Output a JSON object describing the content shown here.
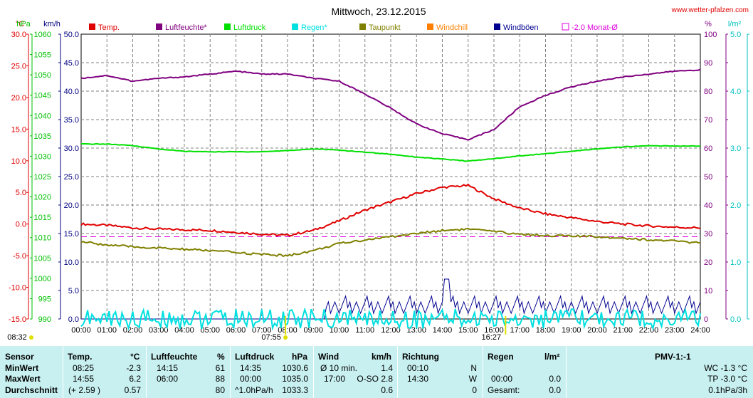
{
  "chart_data": {
    "type": "line",
    "title": "Mittwoch, 23.12.2015",
    "watermark": "www.wetter-pfalzen.com",
    "axes": {
      "temp": {
        "unit": "°C",
        "min": -15,
        "max": 30,
        "ticks": [
          "30.0",
          "25.0",
          "20.0",
          "15.0",
          "10.0",
          "5.0",
          "0.0",
          "-5.0",
          "-10.0",
          "-15.0"
        ],
        "color": "#e00000"
      },
      "pressure": {
        "unit": "hPa",
        "min": 990,
        "max": 1060,
        "ticks": [
          "1060",
          "1055",
          "1050",
          "1045",
          "1040",
          "1035",
          "1030",
          "1025",
          "1020",
          "1015",
          "1010",
          "1005",
          "1000",
          "995",
          "990"
        ],
        "color": "#00c000"
      },
      "wind": {
        "unit": "km/h",
        "min": 0,
        "max": 50,
        "ticks": [
          "50.0",
          "45.0",
          "40.0",
          "35.0",
          "30.0",
          "25.0",
          "20.0",
          "15.0",
          "10.0",
          "5.0",
          "0.0"
        ],
        "color": "#000080"
      },
      "humidity": {
        "unit": "%",
        "min": 0,
        "max": 100,
        "ticks": [
          "100",
          "90",
          "80",
          "70",
          "60",
          "50",
          "40",
          "30",
          "20",
          "10",
          "0"
        ],
        "color": "#800080"
      },
      "rain": {
        "unit": "l/m²",
        "min": 0,
        "max": 5,
        "ticks": [
          "5.0",
          "4.0",
          "3.0",
          "2.0",
          "1.0",
          "0.0"
        ],
        "color": "#00c0c0"
      }
    },
    "x_ticks": [
      "00:00",
      "01:00",
      "02:00",
      "03:00",
      "04:00",
      "05:00",
      "06:00",
      "07:00",
      "08:00",
      "09:00",
      "10:00",
      "11:00",
      "12:00",
      "13:00",
      "14:00",
      "15:00",
      "16:00",
      "17:00",
      "18:00",
      "19:00",
      "20:00",
      "21:00",
      "22:00",
      "23:00",
      "24:00"
    ],
    "sun": {
      "sunrise": "08:32",
      "sunrise_hour": 8.53,
      "sunset": "16:27",
      "sunset_hour": 16.45,
      "solar_noon": "07:55",
      "solar_noon_hour": 7.92
    },
    "legend": [
      {
        "name": "Temp.",
        "color": "#e00000"
      },
      {
        "name": "Luftfeuchte*",
        "color": "#800080"
      },
      {
        "name": "Luftdruck",
        "color": "#00e000"
      },
      {
        "name": "Regen*",
        "color": "#00e0e0"
      },
      {
        "name": "Taupunkt",
        "color": "#808000"
      },
      {
        "name": "Windchill",
        "color": "#ff8000"
      },
      {
        "name": "Windböen",
        "color": "#000090"
      },
      {
        "name": "-2.0 Monat-Ø",
        "color": "#e000e0"
      }
    ],
    "monthly_avg_temp": -2.0,
    "x": [
      0,
      1,
      2,
      3,
      4,
      5,
      6,
      7,
      8,
      9,
      10,
      11,
      12,
      13,
      14,
      15,
      16,
      17,
      18,
      19,
      20,
      21,
      22,
      23,
      24
    ],
    "series": [
      {
        "name": "Temp.",
        "axis": "temp",
        "values": [
          0.0,
          -0.2,
          -0.6,
          -0.8,
          -0.9,
          -1.0,
          -1.3,
          -1.6,
          -1.8,
          -1.0,
          0.5,
          2.2,
          3.5,
          4.8,
          5.8,
          6.1,
          4.0,
          2.5,
          1.6,
          1.0,
          0.4,
          0.0,
          -0.3,
          -0.5,
          -0.6
        ]
      },
      {
        "name": "Luftfeuchte*",
        "axis": "humidity",
        "values": [
          84.5,
          85.5,
          83.5,
          84.5,
          85.0,
          86.0,
          87.0,
          86.0,
          86.0,
          84.5,
          83.5,
          79.0,
          74.0,
          68.5,
          65.0,
          63.0,
          66.5,
          74.5,
          78.5,
          81.5,
          83.5,
          85.0,
          86.0,
          87.0,
          87.5
        ]
      },
      {
        "name": "Luftdruck",
        "axis": "pressure",
        "values": [
          1033.0,
          1033.0,
          1032.6,
          1031.8,
          1031.2,
          1031.1,
          1031.1,
          1031.1,
          1031.4,
          1031.8,
          1031.5,
          1031.0,
          1030.5,
          1029.8,
          1029.3,
          1028.8,
          1029.4,
          1030.1,
          1030.6,
          1031.2,
          1031.8,
          1032.3,
          1032.6,
          1032.5,
          1032.5
        ]
      },
      {
        "name": "Taupunkt",
        "axis": "temp",
        "values": [
          -2.8,
          -3.3,
          -3.6,
          -3.8,
          -4.0,
          -4.2,
          -4.5,
          -4.8,
          -5.0,
          -4.2,
          -3.1,
          -2.5,
          -2.0,
          -1.5,
          -1.0,
          -0.8,
          -1.2,
          -1.6,
          -1.8,
          -1.9,
          -2.0,
          -2.2,
          -2.5,
          -2.7,
          -3.0
        ]
      },
      {
        "name": "Windböen",
        "axis": "wind",
        "values": [
          0,
          0,
          0,
          0,
          0,
          0,
          0,
          0,
          0,
          0,
          3,
          2,
          3,
          2,
          3,
          4,
          2,
          3,
          1,
          2,
          2,
          1,
          2,
          1,
          2
        ]
      },
      {
        "name": "Regen*",
        "axis": "rain",
        "values": [
          0,
          0,
          0,
          0,
          0,
          0,
          0,
          0,
          0,
          0,
          0,
          0,
          0,
          0,
          0,
          0,
          0,
          0,
          0,
          0,
          0,
          0,
          0,
          0,
          0
        ]
      }
    ]
  },
  "table": {
    "headers": {
      "sensor": "Sensor",
      "temp": "Temp.",
      "temp_unit": "°C",
      "hum": "Luftfeuchte",
      "hum_unit": "%",
      "press": "Luftdruck",
      "press_unit": "hPa",
      "wind": "Wind",
      "wind_unit": "km/h",
      "dir": "Richtung",
      "rain": "Regen",
      "rain_unit": "l/m²",
      "pmv": "PMV-1:-1"
    },
    "rows": [
      {
        "label": "MinWert",
        "temp_time": "08:25",
        "temp_val": "-2.3",
        "hum_time": "14:15",
        "hum_val": "61",
        "press_time": "14:35",
        "press_val": "1030.6",
        "wind_label": "Ø 10 min.",
        "wind_val": "1.4",
        "dir_time": "00:10",
        "dir_val": "N",
        "rain_time": "",
        "rain_val": "",
        "pmv": "WC -1.3 °C"
      },
      {
        "label": "MaxWert",
        "temp_time": "14:55",
        "temp_val": "6.2",
        "hum_time": "06:00",
        "hum_val": "88",
        "press_time": "00:00",
        "press_val": "1035.0",
        "wind_label": "17:00",
        "wind_val": "O-SO 2.8",
        "dir_time": "14:30",
        "dir_val": "W",
        "rain_time": "00:00",
        "rain_val": "0.0",
        "pmv": "TP -3.0 °C"
      },
      {
        "label": "Durchschnitt",
        "temp_time": "(+ 2.59 )",
        "temp_val": "0.57",
        "hum_time": "",
        "hum_val": "80",
        "press_time": "^1.0hPa/h",
        "press_val": "1033.3",
        "wind_label": "",
        "wind_val": "0.6",
        "dir_time": "",
        "dir_val": "0",
        "rain_time": "Gesamt:",
        "rain_val": "0.0",
        "pmv": "0.1hPa/3h"
      }
    ]
  }
}
